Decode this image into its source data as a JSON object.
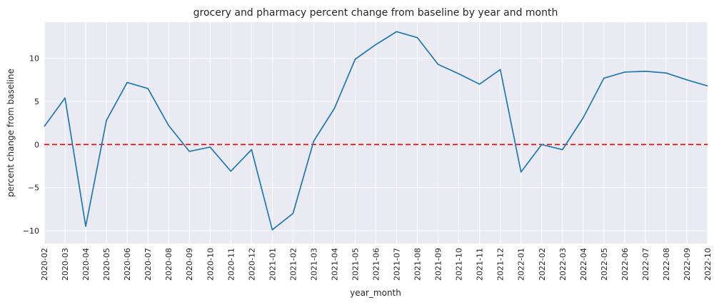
{
  "chart_data": {
    "type": "line",
    "title": "grocery and pharmacy percent change from baseline by year and month",
    "xlabel": "year_month",
    "ylabel": "percent change from baseline",
    "categories": [
      "2020-02",
      "2020-03",
      "2020-04",
      "2020-05",
      "2020-06",
      "2020-07",
      "2020-08",
      "2020-09",
      "2020-10",
      "2020-11",
      "2020-12",
      "2021-01",
      "2021-02",
      "2021-03",
      "2021-04",
      "2021-05",
      "2021-06",
      "2021-07",
      "2021-08",
      "2021-09",
      "2021-10",
      "2021-11",
      "2021-12",
      "2022-01",
      "2022-02",
      "2022-03",
      "2022-04",
      "2022-05",
      "2022-06",
      "2022-07",
      "2022-08",
      "2022-09",
      "2022-10"
    ],
    "series": [
      {
        "color": "#1f77b4",
        "values": [
          2.1,
          5.4,
          -9.5,
          2.8,
          7.2,
          6.5,
          2.2,
          -0.8,
          -0.3,
          -3.1,
          -0.6,
          -9.9,
          -8.0,
          0.4,
          4.2,
          9.9,
          11.6,
          13.1,
          12.4,
          9.3,
          8.2,
          7.0,
          8.7,
          -3.2,
          0.0,
          -0.6,
          3.1,
          7.7,
          8.4,
          8.5,
          8.3,
          7.5,
          6.8
        ]
      }
    ],
    "reference_line": {
      "y": 0,
      "color": "#ff0000",
      "style": "dashed"
    },
    "ylim": [
      -11.5,
      14.2
    ],
    "yticks": [
      -10,
      -5,
      0,
      5,
      10
    ],
    "grid": true,
    "background": "#eaeaf2"
  }
}
